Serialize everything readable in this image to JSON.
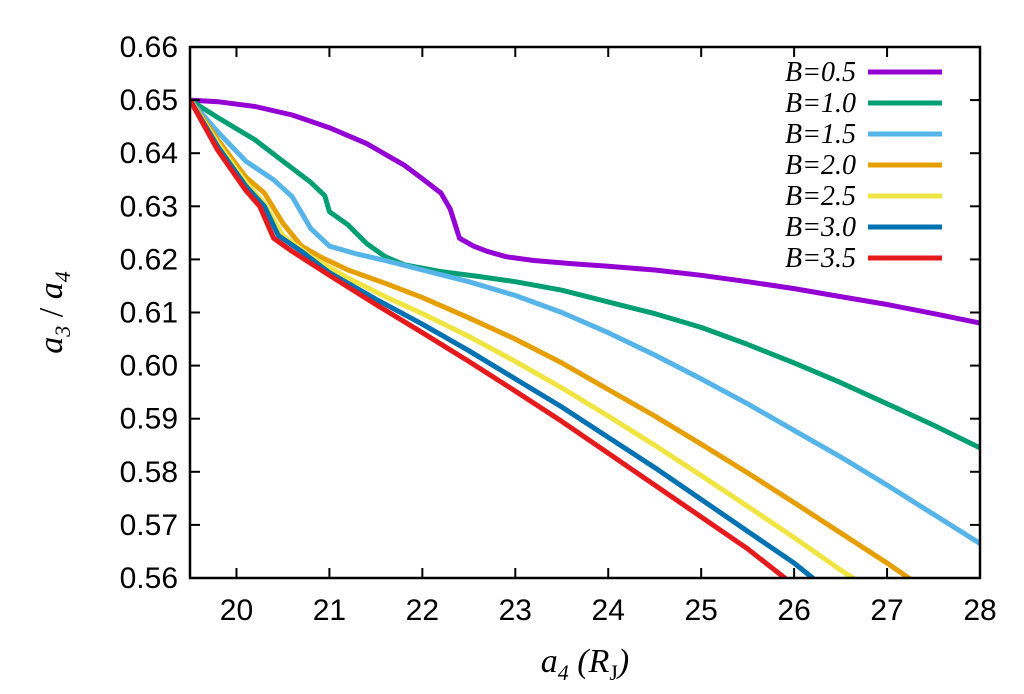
{
  "chart_data": {
    "type": "line",
    "title": "",
    "xlabel": {
      "base": "a",
      "sub": "4",
      "unit_open": " (R",
      "unit_sub": "J",
      "unit_close": ")"
    },
    "ylabel": {
      "num": "a",
      "num_sub": "3",
      "sep": " / ",
      "den": "a",
      "den_sub": "4"
    },
    "xlim": [
      19.5,
      28
    ],
    "ylim": [
      0.56,
      0.66
    ],
    "xticks": [
      20,
      21,
      22,
      23,
      24,
      25,
      26,
      27,
      28
    ],
    "yticks": [
      0.56,
      0.57,
      0.58,
      0.59,
      0.6,
      0.61,
      0.62,
      0.63,
      0.64,
      0.65,
      0.66
    ],
    "ytick_labels": [
      "0.56",
      "0.57",
      "0.58",
      "0.59",
      "0.60",
      "0.61",
      "0.62",
      "0.63",
      "0.64",
      "0.65",
      "0.66"
    ],
    "grid": false,
    "legend_position": "top-right",
    "series": [
      {
        "name": "B=0.5",
        "color": "#9400d3",
        "points": [
          [
            19.5,
            0.65
          ],
          [
            19.8,
            0.6497
          ],
          [
            20.2,
            0.6488
          ],
          [
            20.6,
            0.6472
          ],
          [
            21.0,
            0.6448
          ],
          [
            21.4,
            0.6418
          ],
          [
            21.8,
            0.6378
          ],
          [
            22.0,
            0.6352
          ],
          [
            22.2,
            0.6325
          ],
          [
            22.3,
            0.6295
          ],
          [
            22.4,
            0.624
          ],
          [
            22.55,
            0.6225
          ],
          [
            22.7,
            0.6215
          ],
          [
            22.9,
            0.6205
          ],
          [
            23.2,
            0.6198
          ],
          [
            23.6,
            0.6192
          ],
          [
            24.0,
            0.6187
          ],
          [
            24.5,
            0.618
          ],
          [
            25.0,
            0.617
          ],
          [
            25.5,
            0.6158
          ],
          [
            26.0,
            0.6145
          ],
          [
            26.5,
            0.613
          ],
          [
            27.0,
            0.6115
          ],
          [
            27.5,
            0.6098
          ],
          [
            28.0,
            0.608
          ]
        ]
      },
      {
        "name": "B=1.0",
        "color": "#009e73",
        "points": [
          [
            19.5,
            0.65
          ],
          [
            19.8,
            0.6467
          ],
          [
            20.2,
            0.6425
          ],
          [
            20.5,
            0.6385
          ],
          [
            20.8,
            0.6345
          ],
          [
            20.95,
            0.632
          ],
          [
            21.0,
            0.629
          ],
          [
            21.2,
            0.6265
          ],
          [
            21.4,
            0.623
          ],
          [
            21.6,
            0.6205
          ],
          [
            21.8,
            0.619
          ],
          [
            22.2,
            0.6177
          ],
          [
            22.6,
            0.6168
          ],
          [
            23.0,
            0.6158
          ],
          [
            23.5,
            0.6142
          ],
          [
            24.0,
            0.612
          ],
          [
            24.5,
            0.6098
          ],
          [
            25.0,
            0.6072
          ],
          [
            25.5,
            0.604
          ],
          [
            26.0,
            0.6005
          ],
          [
            26.5,
            0.5968
          ],
          [
            27.0,
            0.5928
          ],
          [
            27.5,
            0.5888
          ],
          [
            28.0,
            0.5845
          ]
        ]
      },
      {
        "name": "B=1.5",
        "color": "#56b4e9",
        "points": [
          [
            19.5,
            0.65
          ],
          [
            19.8,
            0.644
          ],
          [
            20.1,
            0.6385
          ],
          [
            20.4,
            0.635
          ],
          [
            20.6,
            0.6318
          ],
          [
            20.8,
            0.6258
          ],
          [
            21.0,
            0.6225
          ],
          [
            21.3,
            0.621
          ],
          [
            21.6,
            0.6198
          ],
          [
            22.0,
            0.618
          ],
          [
            22.5,
            0.6158
          ],
          [
            23.0,
            0.6132
          ],
          [
            23.5,
            0.61
          ],
          [
            24.0,
            0.6062
          ],
          [
            24.5,
            0.602
          ],
          [
            25.0,
            0.5975
          ],
          [
            25.5,
            0.5928
          ],
          [
            26.0,
            0.5878
          ],
          [
            26.5,
            0.5828
          ],
          [
            27.0,
            0.5775
          ],
          [
            27.5,
            0.572
          ],
          [
            28.0,
            0.5665
          ]
        ]
      },
      {
        "name": "B=2.0",
        "color": "#e69f00",
        "points": [
          [
            19.5,
            0.65
          ],
          [
            19.8,
            0.6425
          ],
          [
            20.1,
            0.6355
          ],
          [
            20.3,
            0.6325
          ],
          [
            20.5,
            0.6268
          ],
          [
            20.7,
            0.6225
          ],
          [
            20.9,
            0.6205
          ],
          [
            21.2,
            0.618
          ],
          [
            21.6,
            0.6155
          ],
          [
            22.0,
            0.6128
          ],
          [
            22.5,
            0.609
          ],
          [
            23.0,
            0.605
          ],
          [
            23.5,
            0.6005
          ],
          [
            24.0,
            0.5955
          ],
          [
            24.5,
            0.5905
          ],
          [
            25.0,
            0.5852
          ],
          [
            25.5,
            0.5798
          ],
          [
            26.0,
            0.5742
          ],
          [
            26.5,
            0.5685
          ],
          [
            27.0,
            0.5628
          ],
          [
            27.3,
            0.5592
          ]
        ]
      },
      {
        "name": "B=2.5",
        "color": "#f0e442",
        "points": [
          [
            19.5,
            0.65
          ],
          [
            19.8,
            0.6418
          ],
          [
            20.1,
            0.6345
          ],
          [
            20.3,
            0.6305
          ],
          [
            20.5,
            0.6245
          ],
          [
            20.8,
            0.6205
          ],
          [
            21.2,
            0.6165
          ],
          [
            21.6,
            0.613
          ],
          [
            22.0,
            0.6098
          ],
          [
            22.5,
            0.6055
          ],
          [
            23.0,
            0.6008
          ],
          [
            23.5,
            0.5958
          ],
          [
            24.0,
            0.5905
          ],
          [
            24.5,
            0.585
          ],
          [
            25.0,
            0.5793
          ],
          [
            25.5,
            0.5735
          ],
          [
            26.0,
            0.5676
          ],
          [
            26.5,
            0.5615
          ],
          [
            26.65,
            0.5598
          ]
        ]
      },
      {
        "name": "B=3.0",
        "color": "#0072b2",
        "points": [
          [
            19.5,
            0.65
          ],
          [
            19.8,
            0.6412
          ],
          [
            20.1,
            0.6338
          ],
          [
            20.3,
            0.63
          ],
          [
            20.45,
            0.6245
          ],
          [
            20.7,
            0.6215
          ],
          [
            21.0,
            0.6175
          ],
          [
            21.5,
            0.6125
          ],
          [
            22.0,
            0.6078
          ],
          [
            22.5,
            0.6028
          ],
          [
            23.0,
            0.5975
          ],
          [
            23.5,
            0.5922
          ],
          [
            24.0,
            0.5865
          ],
          [
            24.5,
            0.5808
          ],
          [
            25.0,
            0.5748
          ],
          [
            25.5,
            0.5688
          ],
          [
            26.0,
            0.5628
          ],
          [
            26.2,
            0.56
          ]
        ]
      },
      {
        "name": "B=3.5",
        "color": "#e41a1c",
        "points": [
          [
            19.5,
            0.65
          ],
          [
            19.8,
            0.6405
          ],
          [
            20.1,
            0.633
          ],
          [
            20.25,
            0.63
          ],
          [
            20.4,
            0.624
          ],
          [
            20.6,
            0.6215
          ],
          [
            21.0,
            0.617
          ],
          [
            21.5,
            0.6115
          ],
          [
            22.0,
            0.6062
          ],
          [
            22.5,
            0.6008
          ],
          [
            23.0,
            0.5952
          ],
          [
            23.5,
            0.5895
          ],
          [
            24.0,
            0.5835
          ],
          [
            24.5,
            0.5775
          ],
          [
            25.0,
            0.5715
          ],
          [
            25.5,
            0.5655
          ],
          [
            25.9,
            0.56
          ]
        ]
      }
    ]
  }
}
